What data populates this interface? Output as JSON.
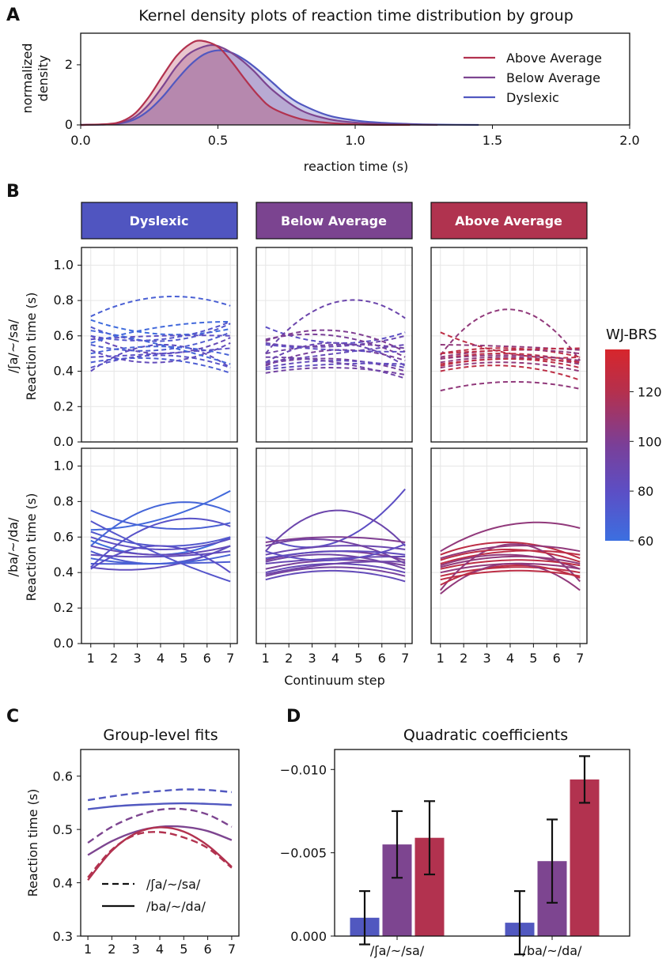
{
  "panel_letters": [
    "A",
    "B",
    "C",
    "D"
  ],
  "colors": {
    "dyslexic": "#5158c0",
    "below_average": "#7d4590",
    "above_average": "#b2324f",
    "header_dyslexic": "#5055c0",
    "header_below": "#7b4490",
    "header_above": "#b0334f"
  },
  "chart_data": [
    {
      "id": "A",
      "type": "area",
      "title": "Kernel density plots of reaction time distribution by group",
      "xlabel": "reaction time (s)",
      "ylabel_lines": [
        "normalized",
        "density"
      ],
      "xlim": [
        0,
        2
      ],
      "ylim": [
        0,
        3.05
      ],
      "xticks": [
        "0.0",
        "0.5",
        "1.0",
        "1.5",
        "2.0"
      ],
      "yticks": [
        "0",
        "2"
      ],
      "legend": [
        "Above Average",
        "Below Average",
        "Dyslexic"
      ],
      "legend_position": "upper-right",
      "series": [
        {
          "name": "Above Average",
          "color": "#b2324f",
          "x": [
            0.0,
            0.1,
            0.15,
            0.2,
            0.25,
            0.3,
            0.35,
            0.4,
            0.44,
            0.5,
            0.55,
            0.6,
            0.65,
            0.7,
            0.8,
            0.9,
            1.0,
            1.1,
            1.2
          ],
          "y": [
            0.0,
            0.03,
            0.12,
            0.4,
            0.95,
            1.65,
            2.3,
            2.7,
            2.8,
            2.6,
            2.1,
            1.5,
            0.95,
            0.55,
            0.2,
            0.07,
            0.02,
            0.0,
            0.0
          ]
        },
        {
          "name": "Below Average",
          "color": "#7d4590",
          "x": [
            0.0,
            0.1,
            0.15,
            0.2,
            0.25,
            0.3,
            0.35,
            0.4,
            0.47,
            0.52,
            0.58,
            0.63,
            0.7,
            0.8,
            0.9,
            1.0,
            1.1,
            1.2,
            1.3
          ],
          "y": [
            0.0,
            0.02,
            0.08,
            0.28,
            0.7,
            1.3,
            1.95,
            2.4,
            2.65,
            2.55,
            2.2,
            1.8,
            1.15,
            0.5,
            0.2,
            0.08,
            0.03,
            0.01,
            0.0
          ]
        },
        {
          "name": "Dyslexic",
          "color": "#5158c0",
          "x": [
            0.0,
            0.1,
            0.15,
            0.2,
            0.25,
            0.3,
            0.35,
            0.4,
            0.45,
            0.5,
            0.55,
            0.6,
            0.65,
            0.7,
            0.75,
            0.8,
            0.9,
            1.0,
            1.1,
            1.2,
            1.3,
            1.45
          ],
          "y": [
            0.0,
            0.02,
            0.06,
            0.2,
            0.5,
            0.95,
            1.5,
            2.0,
            2.35,
            2.48,
            2.4,
            2.15,
            1.8,
            1.4,
            1.0,
            0.7,
            0.32,
            0.15,
            0.07,
            0.03,
            0.01,
            0.0
          ]
        }
      ]
    },
    {
      "id": "B",
      "type": "line",
      "column_titles": [
        "Dyslexic",
        "Below Average",
        "Above Average"
      ],
      "row_labels": [
        [
          "/ʃa/~/sa/",
          "Reaction time (s)"
        ],
        [
          "/ba/~/da/",
          "Reaction time (s)"
        ]
      ],
      "xlabel": "Continuum step",
      "xticks": [
        "1",
        "2",
        "3",
        "4",
        "5",
        "6",
        "7"
      ],
      "xlim": [
        0.6,
        7.3
      ],
      "ylim": [
        0,
        1.1
      ],
      "yticks": [
        "0.0",
        "0.2",
        "0.4",
        "0.6",
        "0.8",
        "1.0"
      ],
      "line_styles": [
        "dashed",
        "solid"
      ],
      "colorbar": {
        "title": "WJ-BRS",
        "range": [
          60,
          137
        ],
        "ticks": [
          "60",
          "80",
          "100",
          "120"
        ],
        "colors": [
          "#3c6fe0",
          "#5b4fc6",
          "#7a3f98",
          "#b5304d",
          "#d7262c"
        ]
      },
      "panels": [
        [
          [
            [
              0.69,
              0.61,
              0.64
            ],
            [
              0.65,
              0.57,
              0.67
            ],
            [
              0.6,
              0.5,
              0.59
            ],
            [
              0.55,
              0.52,
              0.62
            ],
            [
              0.52,
              0.45,
              0.56
            ],
            [
              0.45,
              0.47,
              0.39
            ],
            [
              0.4,
              0.55,
              0.42
            ],
            [
              0.71,
              0.82,
              0.77
            ],
            [
              0.58,
              0.6,
              0.6
            ],
            [
              0.5,
              0.54,
              0.49
            ],
            [
              0.48,
              0.5,
              0.53
            ],
            [
              0.63,
              0.55,
              0.44
            ],
            [
              0.42,
              0.49,
              0.42
            ],
            [
              0.56,
              0.65,
              0.68
            ],
            [
              0.6,
              0.58,
              0.68
            ]
          ],
          [
            [
              0.58,
              0.5,
              0.6
            ],
            [
              0.63,
              0.55,
              0.6
            ],
            [
              0.55,
              0.5,
              0.55
            ],
            [
              0.52,
              0.45,
              0.55
            ],
            [
              0.5,
              0.49,
              0.52
            ],
            [
              0.45,
              0.45,
              0.46
            ],
            [
              0.43,
              0.43,
              0.55
            ],
            [
              0.75,
              0.65,
              0.68
            ],
            [
              0.6,
              0.53,
              0.59
            ],
            [
              0.48,
              0.45,
              0.5
            ],
            [
              0.42,
              0.55,
              0.4
            ],
            [
              0.55,
              0.78,
              0.74
            ],
            [
              0.43,
              0.68,
              0.66
            ],
            [
              0.64,
              0.7,
              0.86
            ],
            [
              0.69,
              0.5,
              0.35
            ]
          ]
        ],
        [
          [
            [
              0.65,
              0.56,
              0.62
            ],
            [
              0.5,
              0.79,
              0.7
            ],
            [
              0.57,
              0.63,
              0.51
            ],
            [
              0.56,
              0.54,
              0.6
            ],
            [
              0.58,
              0.6,
              0.48
            ],
            [
              0.45,
              0.56,
              0.43
            ],
            [
              0.43,
              0.52,
              0.46
            ],
            [
              0.45,
              0.5,
              0.55
            ],
            [
              0.44,
              0.47,
              0.4
            ],
            [
              0.42,
              0.46,
              0.42
            ],
            [
              0.39,
              0.42,
              0.38
            ],
            [
              0.41,
              0.44,
              0.44
            ],
            [
              0.5,
              0.55,
              0.53
            ],
            [
              0.55,
              0.52,
              0.51
            ],
            [
              0.48,
              0.45,
              0.36
            ]
          ],
          [
            [
              0.6,
              0.57,
              0.87
            ],
            [
              0.52,
              0.75,
              0.55
            ],
            [
              0.57,
              0.6,
              0.57
            ],
            [
              0.5,
              0.55,
              0.53
            ],
            [
              0.47,
              0.52,
              0.47
            ],
            [
              0.45,
              0.48,
              0.49
            ],
            [
              0.42,
              0.47,
              0.44
            ],
            [
              0.4,
              0.45,
              0.4
            ],
            [
              0.38,
              0.43,
              0.38
            ],
            [
              0.36,
              0.41,
              0.35
            ],
            [
              0.55,
              0.58,
              0.45
            ],
            [
              0.48,
              0.52,
              0.5
            ],
            [
              0.46,
              0.5,
              0.42
            ],
            [
              0.52,
              0.47,
              0.56
            ],
            [
              0.39,
              0.45,
              0.46
            ]
          ]
        ],
        [
          [
            [
              0.49,
              0.75,
              0.46
            ],
            [
              0.62,
              0.5,
              0.48
            ],
            [
              0.55,
              0.54,
              0.52
            ],
            [
              0.5,
              0.53,
              0.48
            ],
            [
              0.48,
              0.52,
              0.5
            ],
            [
              0.47,
              0.5,
              0.45
            ],
            [
              0.45,
              0.48,
              0.44
            ],
            [
              0.43,
              0.47,
              0.42
            ],
            [
              0.42,
              0.45,
              0.4
            ],
            [
              0.4,
              0.43,
              0.35
            ],
            [
              0.29,
              0.34,
              0.3
            ],
            [
              0.5,
              0.52,
              0.53
            ],
            [
              0.47,
              0.49,
              0.46
            ],
            [
              0.44,
              0.47,
              0.45
            ]
          ],
          [
            [
              0.52,
              0.67,
              0.65
            ],
            [
              0.5,
              0.57,
              0.48
            ],
            [
              0.48,
              0.55,
              0.52
            ],
            [
              0.45,
              0.52,
              0.5
            ],
            [
              0.44,
              0.5,
              0.42
            ],
            [
              0.42,
              0.47,
              0.44
            ],
            [
              0.4,
              0.45,
              0.42
            ],
            [
              0.38,
              0.43,
              0.4
            ],
            [
              0.3,
              0.56,
              0.35
            ],
            [
              0.33,
              0.44,
              0.37
            ],
            [
              0.28,
              0.45,
              0.3
            ],
            [
              0.47,
              0.53,
              0.46
            ],
            [
              0.43,
              0.49,
              0.45
            ],
            [
              0.36,
              0.41,
              0.38
            ]
          ]
        ]
      ]
    },
    {
      "id": "C",
      "type": "line",
      "title": "Group-level fits",
      "ylabel": "Reaction time (s)",
      "xticks": [
        "1",
        "2",
        "3",
        "4",
        "5",
        "6",
        "7"
      ],
      "xlim": [
        0.7,
        7.3
      ],
      "ylim": [
        0.3,
        0.65
      ],
      "yticks": [
        "0.3",
        "0.4",
        "0.5",
        "0.6"
      ],
      "legend": [
        "/ʃa/~/sa/",
        "/ba/~/da/"
      ],
      "legend_position": "lower-left",
      "series": [
        {
          "group": "Dyslexic",
          "continuum": "/ʃa/~/sa/",
          "style": "dashed",
          "color": "#5158c0",
          "values": [
            0.555,
            0.562,
            0.568,
            0.572,
            0.575,
            0.574,
            0.57
          ]
        },
        {
          "group": "Dyslexic",
          "continuum": "/ba/~/da/",
          "style": "solid",
          "color": "#5158c0",
          "values": [
            0.538,
            0.543,
            0.546,
            0.548,
            0.549,
            0.548,
            0.546
          ]
        },
        {
          "group": "Below Average",
          "continuum": "/ʃa/~/sa/",
          "style": "dashed",
          "color": "#7d4590",
          "values": [
            0.475,
            0.505,
            0.525,
            0.537,
            0.538,
            0.528,
            0.505
          ]
        },
        {
          "group": "Below Average",
          "continuum": "/ba/~/da/",
          "style": "solid",
          "color": "#7d4590",
          "values": [
            0.452,
            0.478,
            0.496,
            0.505,
            0.505,
            0.497,
            0.48
          ]
        },
        {
          "group": "Above Average",
          "continuum": "/ʃa/~/sa/",
          "style": "dashed",
          "color": "#b2324f",
          "values": [
            0.41,
            0.462,
            0.49,
            0.495,
            0.485,
            0.465,
            0.428
          ]
        },
        {
          "group": "Above Average",
          "continuum": "/ba/~/da/",
          "style": "solid",
          "color": "#b2324f",
          "values": [
            0.405,
            0.46,
            0.493,
            0.504,
            0.496,
            0.47,
            0.43
          ]
        }
      ]
    },
    {
      "id": "D",
      "type": "bar",
      "title": "Quadratic coefficients",
      "categories": [
        "/ʃa/~/sa/",
        "/ba/~/da/"
      ],
      "ylim": [
        0,
        -0.0112
      ],
      "y_inverted": true,
      "yticks": [
        "−0.010",
        "−0.005",
        "0.000"
      ],
      "series": [
        {
          "name": "Dyslexic",
          "color": "#5158c0",
          "values": [
            -0.0011,
            -0.0008
          ],
          "err": [
            0.0016,
            0.0019
          ]
        },
        {
          "name": "Below Average",
          "color": "#7d4590",
          "values": [
            -0.0055,
            -0.0045
          ],
          "err": [
            0.002,
            0.0025
          ]
        },
        {
          "name": "Above Average",
          "color": "#b2324f",
          "values": [
            -0.0059,
            -0.0094
          ],
          "err": [
            0.0022,
            0.0014
          ]
        }
      ]
    }
  ]
}
